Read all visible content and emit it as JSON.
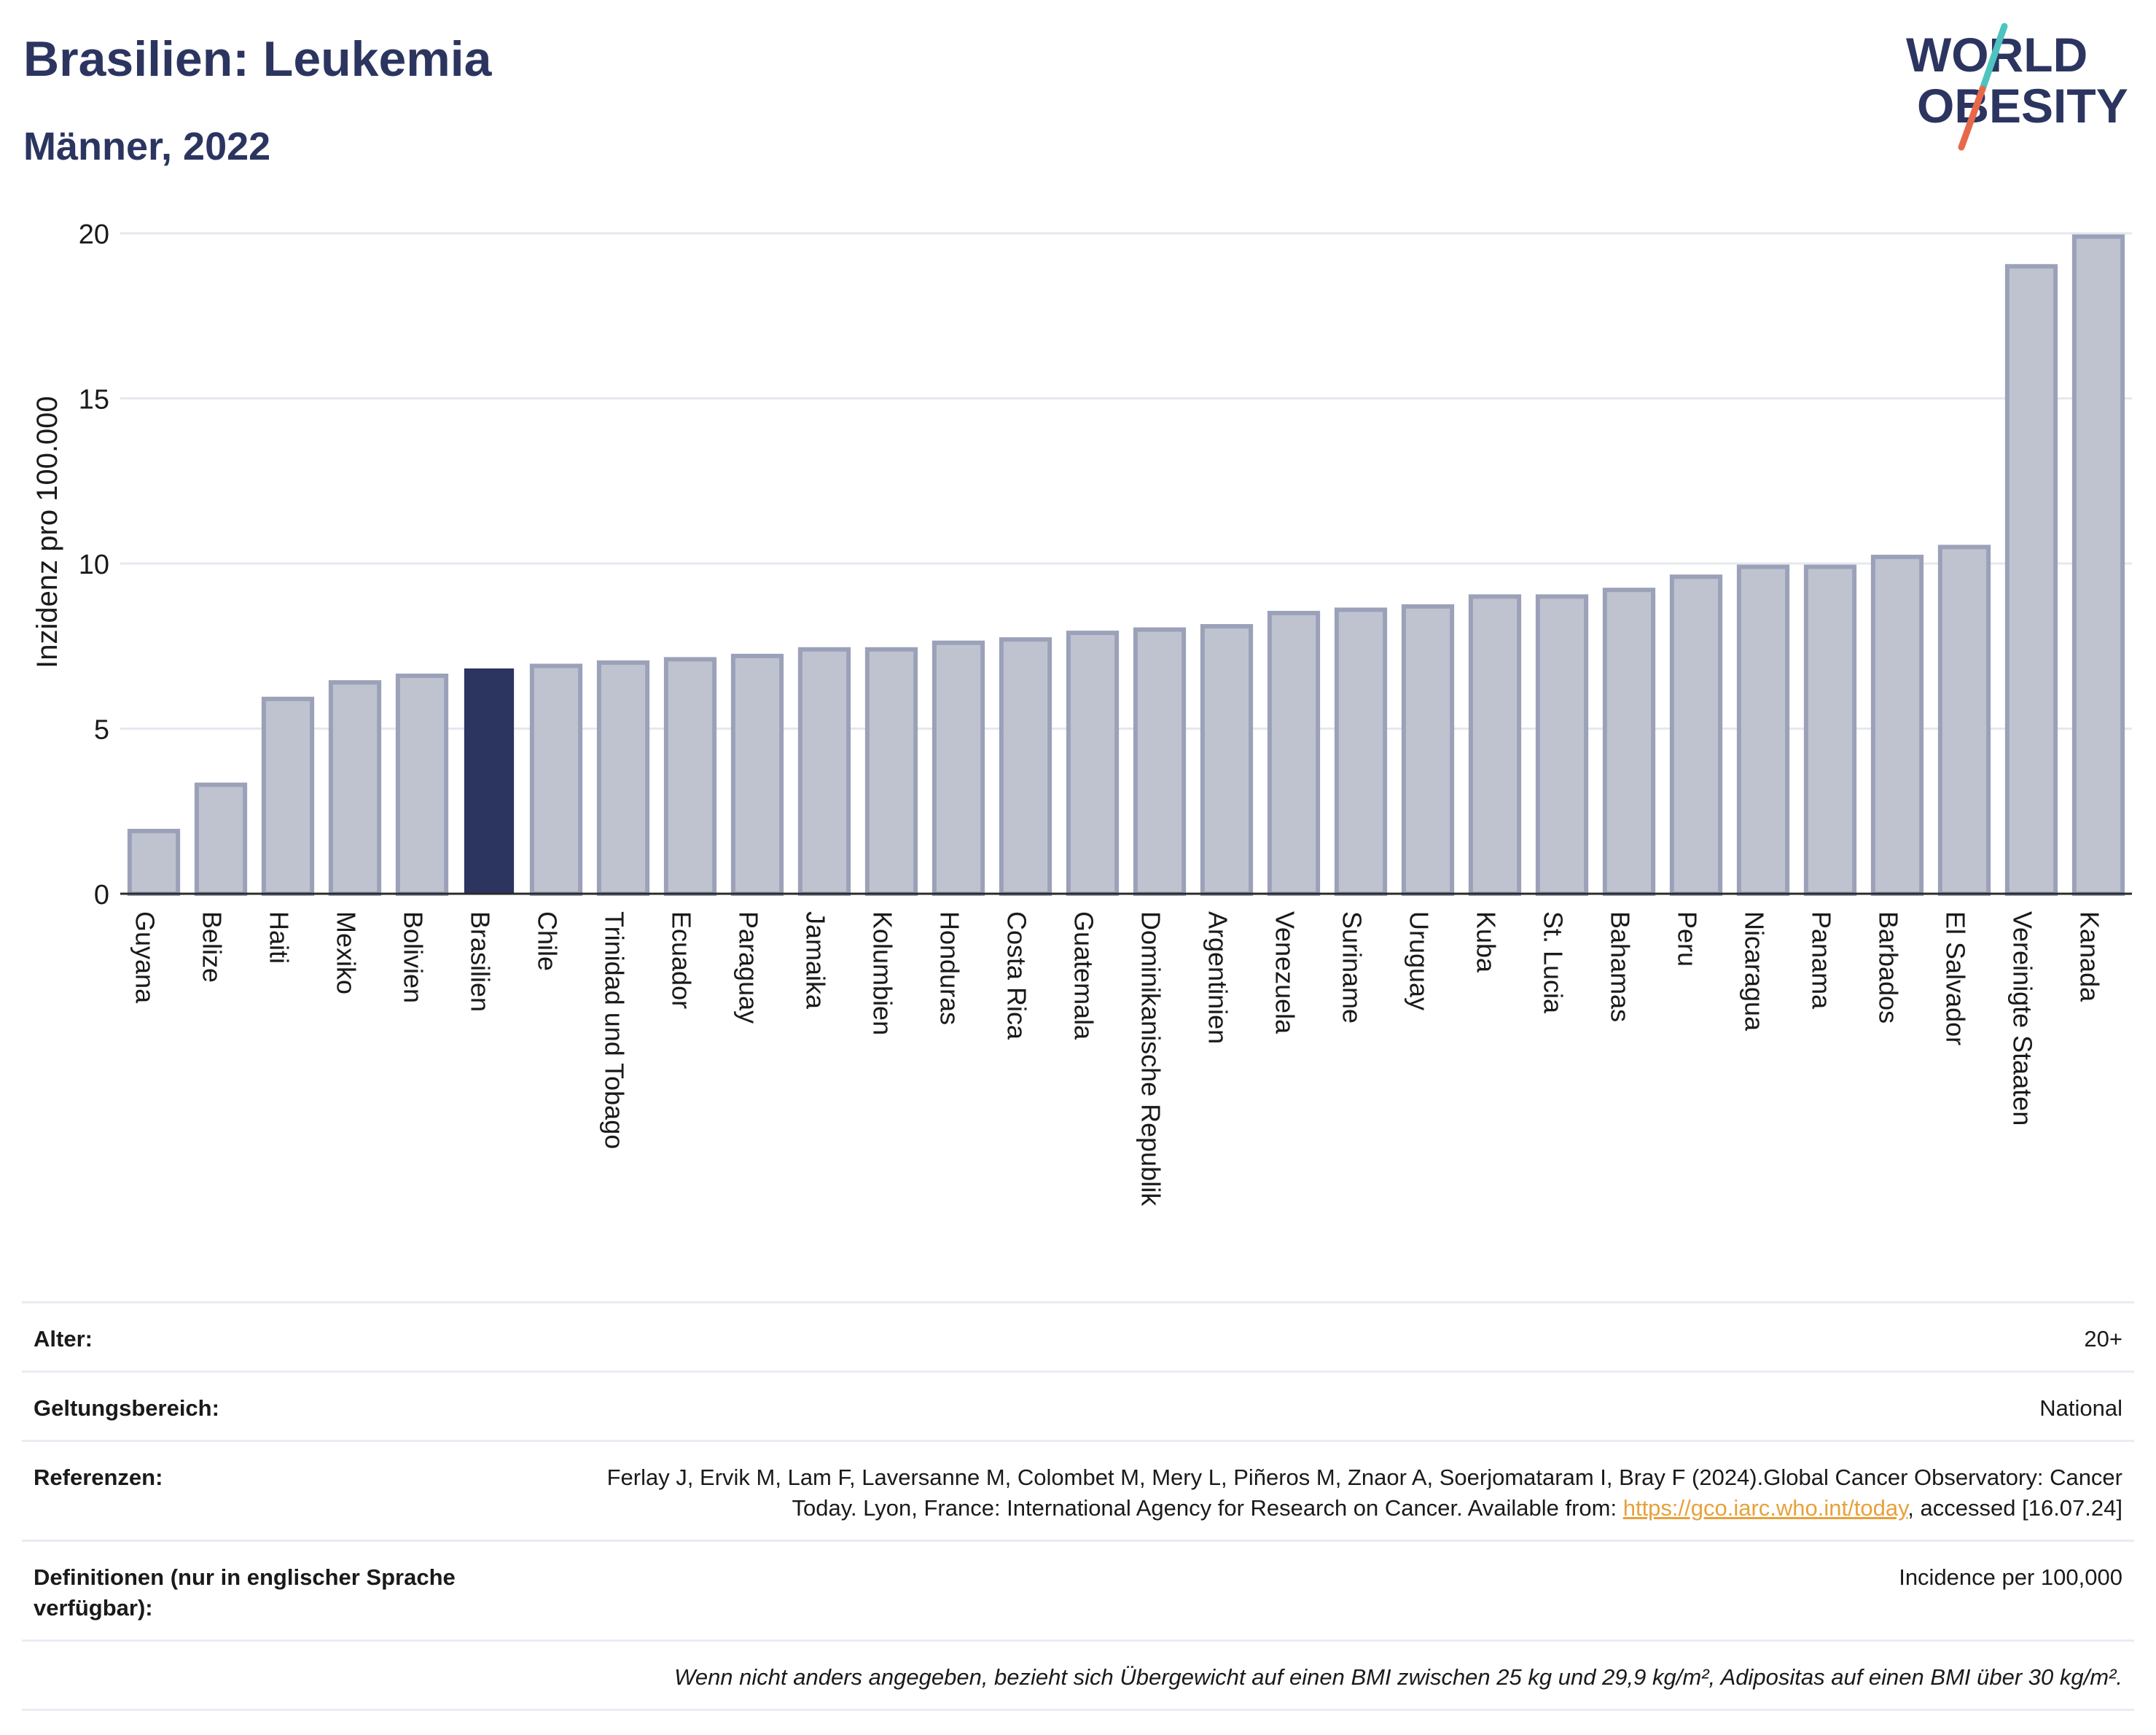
{
  "header": {
    "title": "Brasilien: Leukemia",
    "subtitle": "Männer, 2022"
  },
  "logo": {
    "line1": "WORLD",
    "line2": "OBESITY",
    "text_color": "#2b3560",
    "slash_colors": [
      "#4ec3c0",
      "#e8694a"
    ]
  },
  "chart_data": {
    "type": "bar",
    "ylabel": "Inzidenz pro 100.000",
    "ylim": [
      0,
      20
    ],
    "yticks": [
      0,
      5,
      10,
      15,
      20
    ],
    "grid": true,
    "highlight": "Brasilien",
    "colors": {
      "bar_fill": "#bfc3d0",
      "bar_stroke": "#9ba1b8",
      "highlight_fill": "#2b3560",
      "grid": "#e6e8ef",
      "axis": "#2b2b2b"
    },
    "categories": [
      "Guyana",
      "Belize",
      "Haiti",
      "Mexiko",
      "Bolivien",
      "Brasilien",
      "Chile",
      "Trinidad und Tobago",
      "Ecuador",
      "Paraguay",
      "Jamaika",
      "Kolumbien",
      "Honduras",
      "Costa Rica",
      "Guatemala",
      "Dominikanische Republik",
      "Argentinien",
      "Venezuela",
      "Suriname",
      "Uruguay",
      "Kuba",
      "St. Lucia",
      "Bahamas",
      "Peru",
      "Nicaragua",
      "Panama",
      "Barbados",
      "El Salvador",
      "Vereinigte Staaten",
      "Kanada"
    ],
    "values": [
      1.9,
      3.3,
      5.9,
      6.4,
      6.6,
      6.8,
      6.9,
      7.0,
      7.1,
      7.2,
      7.4,
      7.4,
      7.6,
      7.7,
      7.9,
      8.0,
      8.1,
      8.5,
      8.6,
      8.7,
      9.0,
      9.0,
      9.2,
      9.6,
      9.9,
      9.9,
      10.2,
      10.5,
      19.0,
      19.9
    ]
  },
  "info": {
    "age_label": "Alter:",
    "age_value": "20+",
    "scope_label": "Geltungsbereich:",
    "scope_value": "National",
    "refs_label": "Referenzen:",
    "refs_text_1": "Ferlay J, Ervik M, Lam F, Laversanne M, Colombet M, Mery L, Piñeros M, Znaor A, Soerjomataram I, Bray F (2024).Global Cancer Observatory: Cancer Today. Lyon, France: International Agency for Research on Cancer. Available from: ",
    "refs_link": "https://gco.iarc.who.int/today",
    "refs_text_2": ", accessed [16.07.24]",
    "defs_label": "Definitionen (nur in englischer Sprache verfügbar):",
    "defs_value": "Incidence per 100,000",
    "note": "Wenn nicht anders angegeben, bezieht sich Übergewicht auf einen BMI zwischen 25 kg und 29,9 kg/m², Adipositas auf einen BMI über 30 kg/m²."
  }
}
